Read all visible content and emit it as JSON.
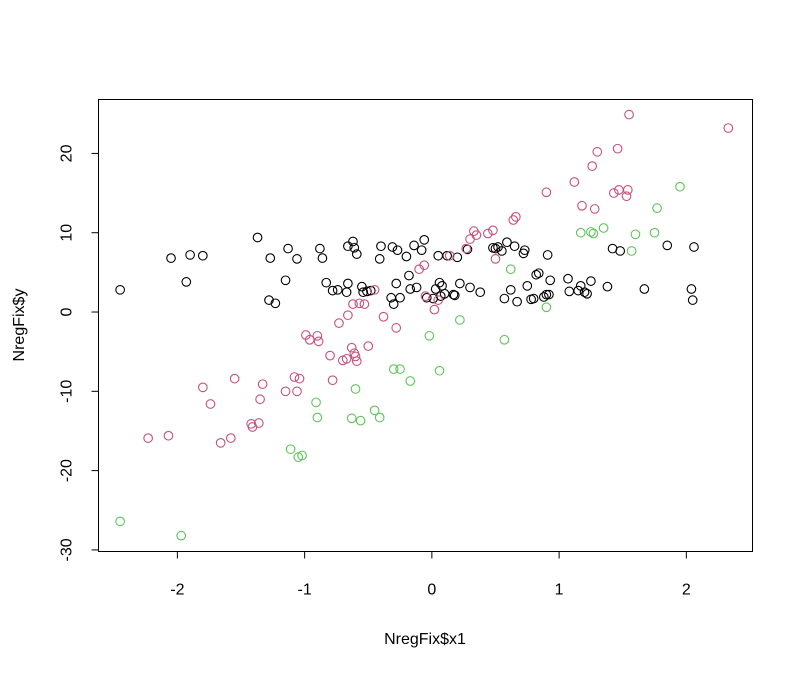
{
  "chart_data": {
    "type": "scatter",
    "title": "",
    "xlabel": "NregFix$x1",
    "ylabel": "NregFix$y",
    "xlim": [
      -2.62,
      2.52
    ],
    "ylim": [
      -30.2,
      26.8
    ],
    "xticks": [
      -2,
      -1,
      0,
      1,
      2
    ],
    "xtick_labels": [
      "-2",
      "-1",
      "0",
      "1",
      "2"
    ],
    "yticks": [
      -30,
      -20,
      -10,
      0,
      10,
      20
    ],
    "ytick_labels": [
      "-30",
      "-20",
      "-10",
      "0",
      "10",
      "20"
    ],
    "grid": false,
    "legend": "none",
    "series": [
      {
        "color": "#000000",
        "points": [
          [
            -2.45,
            2.8
          ],
          [
            -2.05,
            6.8
          ],
          [
            -1.93,
            3.8
          ],
          [
            -1.9,
            7.2
          ],
          [
            -1.8,
            7.1
          ],
          [
            -1.37,
            9.4
          ],
          [
            -1.28,
            1.5
          ],
          [
            -1.27,
            6.8
          ],
          [
            -1.23,
            1.1
          ],
          [
            -1.15,
            4.0
          ],
          [
            -1.13,
            8.0
          ],
          [
            -1.06,
            6.7
          ],
          [
            -0.88,
            8.0
          ],
          [
            -0.86,
            6.8
          ],
          [
            -0.83,
            3.7
          ],
          [
            -0.78,
            2.7
          ],
          [
            -0.74,
            2.8
          ],
          [
            -0.67,
            2.5
          ],
          [
            -0.66,
            3.6
          ],
          [
            -0.66,
            8.3
          ],
          [
            -0.62,
            8.9
          ],
          [
            -0.61,
            8.1
          ],
          [
            -0.59,
            7.3
          ],
          [
            -0.55,
            3.2
          ],
          [
            -0.54,
            2.5
          ],
          [
            -0.51,
            2.6
          ],
          [
            -0.48,
            2.7
          ],
          [
            -0.41,
            6.7
          ],
          [
            -0.4,
            8.3
          ],
          [
            -0.32,
            1.8
          ],
          [
            -0.31,
            8.2
          ],
          [
            -0.3,
            1.0
          ],
          [
            -0.28,
            3.6
          ],
          [
            -0.27,
            7.8
          ],
          [
            -0.25,
            1.8
          ],
          [
            -0.2,
            7.0
          ],
          [
            -0.18,
            4.6
          ],
          [
            -0.17,
            2.9
          ],
          [
            -0.14,
            8.4
          ],
          [
            -0.12,
            3.1
          ],
          [
            -0.08,
            7.8
          ],
          [
            -0.06,
            9.1
          ],
          [
            -0.04,
            1.8
          ],
          [
            0.01,
            1.7
          ],
          [
            0.03,
            2.9
          ],
          [
            0.05,
            7.1
          ],
          [
            0.06,
            3.7
          ],
          [
            0.07,
            2.0
          ],
          [
            0.08,
            3.3
          ],
          [
            0.1,
            2.3
          ],
          [
            0.12,
            7.1
          ],
          [
            0.17,
            2.2
          ],
          [
            0.18,
            2.1
          ],
          [
            0.2,
            6.9
          ],
          [
            0.22,
            3.6
          ],
          [
            0.28,
            7.9
          ],
          [
            0.3,
            3.1
          ],
          [
            0.38,
            2.5
          ],
          [
            0.48,
            8.1
          ],
          [
            0.5,
            8.0
          ],
          [
            0.52,
            8.2
          ],
          [
            0.55,
            7.7
          ],
          [
            0.57,
            1.7
          ],
          [
            0.59,
            8.8
          ],
          [
            0.62,
            2.8
          ],
          [
            0.65,
            8.3
          ],
          [
            0.67,
            1.3
          ],
          [
            0.72,
            7.4
          ],
          [
            0.73,
            7.8
          ],
          [
            0.75,
            3.3
          ],
          [
            0.78,
            1.6
          ],
          [
            0.8,
            1.7
          ],
          [
            0.82,
            4.7
          ],
          [
            0.84,
            4.9
          ],
          [
            0.88,
            1.9
          ],
          [
            0.9,
            2.2
          ],
          [
            0.91,
            7.2
          ],
          [
            0.92,
            2.2
          ],
          [
            0.93,
            4.0
          ],
          [
            1.07,
            4.2
          ],
          [
            1.08,
            2.6
          ],
          [
            1.15,
            2.7
          ],
          [
            1.17,
            3.3
          ],
          [
            1.2,
            2.5
          ],
          [
            1.22,
            2.3
          ],
          [
            1.25,
            3.9
          ],
          [
            1.38,
            3.2
          ],
          [
            1.42,
            8.0
          ],
          [
            1.48,
            7.7
          ],
          [
            1.67,
            2.9
          ],
          [
            1.85,
            8.4
          ],
          [
            2.04,
            2.9
          ],
          [
            2.05,
            1.5
          ],
          [
            2.06,
            8.2
          ]
        ]
      },
      {
        "color": "#c94f7c",
        "points": [
          [
            -2.23,
            -15.9
          ],
          [
            -2.07,
            -15.6
          ],
          [
            -1.8,
            -9.5
          ],
          [
            -1.74,
            -11.6
          ],
          [
            -1.66,
            -16.5
          ],
          [
            -1.58,
            -15.9
          ],
          [
            -1.55,
            -8.4
          ],
          [
            -1.42,
            -14.1
          ],
          [
            -1.41,
            -14.5
          ],
          [
            -1.36,
            -14.0
          ],
          [
            -1.35,
            -11.0
          ],
          [
            -1.33,
            -9.1
          ],
          [
            -1.15,
            -10.0
          ],
          [
            -1.08,
            -8.2
          ],
          [
            -1.06,
            -10.0
          ],
          [
            -1.04,
            -8.4
          ],
          [
            -0.99,
            -2.9
          ],
          [
            -0.96,
            -3.5
          ],
          [
            -0.9,
            -3.0
          ],
          [
            -0.89,
            -3.7
          ],
          [
            -0.8,
            -5.5
          ],
          [
            -0.78,
            -8.6
          ],
          [
            -0.73,
            -1.4
          ],
          [
            -0.7,
            -6.1
          ],
          [
            -0.67,
            -5.9
          ],
          [
            -0.66,
            -0.4
          ],
          [
            -0.63,
            -4.5
          ],
          [
            -0.62,
            1.0
          ],
          [
            -0.61,
            -5.2
          ],
          [
            -0.6,
            -5.6
          ],
          [
            -0.59,
            -6.2
          ],
          [
            -0.57,
            1.1
          ],
          [
            -0.53,
            1.0
          ],
          [
            -0.5,
            -4.3
          ],
          [
            -0.45,
            2.8
          ],
          [
            -0.38,
            -0.6
          ],
          [
            -0.28,
            -2.0
          ],
          [
            -0.05,
            2.0
          ],
          [
            -0.1,
            5.4
          ],
          [
            -0.06,
            5.9
          ],
          [
            0.02,
            0.3
          ],
          [
            0.05,
            1.5
          ],
          [
            0.14,
            7.1
          ],
          [
            0.27,
            8.0
          ],
          [
            0.3,
            9.2
          ],
          [
            0.33,
            10.2
          ],
          [
            0.35,
            9.7
          ],
          [
            0.44,
            9.9
          ],
          [
            0.48,
            10.3
          ],
          [
            0.5,
            6.7
          ],
          [
            0.64,
            11.6
          ],
          [
            0.66,
            12.0
          ],
          [
            0.9,
            15.1
          ],
          [
            1.12,
            16.4
          ],
          [
            1.18,
            13.4
          ],
          [
            1.26,
            18.4
          ],
          [
            1.28,
            13.0
          ],
          [
            1.3,
            20.2
          ],
          [
            1.43,
            15.0
          ],
          [
            1.46,
            20.6
          ],
          [
            1.47,
            15.4
          ],
          [
            1.53,
            14.6
          ],
          [
            1.54,
            15.4
          ],
          [
            1.55,
            24.9
          ],
          [
            2.33,
            23.2
          ]
        ]
      },
      {
        "color": "#5ec45a",
        "points": [
          [
            -2.45,
            -26.4
          ],
          [
            -1.97,
            -28.2
          ],
          [
            -1.11,
            -17.3
          ],
          [
            -1.05,
            -18.3
          ],
          [
            -1.02,
            -18.1
          ],
          [
            -0.91,
            -11.4
          ],
          [
            -0.9,
            -13.3
          ],
          [
            -0.63,
            -13.4
          ],
          [
            -0.6,
            -9.7
          ],
          [
            -0.56,
            -13.7
          ],
          [
            -0.45,
            -12.4
          ],
          [
            -0.41,
            -13.3
          ],
          [
            -0.3,
            -7.2
          ],
          [
            -0.25,
            -7.2
          ],
          [
            -0.17,
            -8.7
          ],
          [
            -0.02,
            -3.0
          ],
          [
            0.06,
            -7.4
          ],
          [
            0.22,
            -1.0
          ],
          [
            0.57,
            -3.5
          ],
          [
            0.62,
            5.4
          ],
          [
            0.9,
            0.6
          ],
          [
            1.17,
            10.0
          ],
          [
            1.25,
            10.1
          ],
          [
            1.27,
            9.9
          ],
          [
            1.35,
            10.6
          ],
          [
            1.57,
            7.7
          ],
          [
            1.6,
            9.8
          ],
          [
            1.75,
            10.0
          ],
          [
            1.77,
            13.1
          ],
          [
            1.95,
            15.8
          ]
        ]
      }
    ]
  }
}
